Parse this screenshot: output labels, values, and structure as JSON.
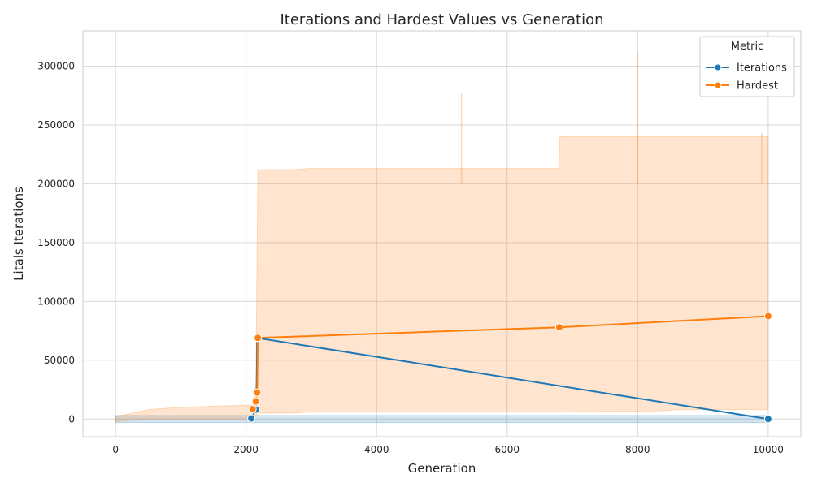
{
  "chart_data": {
    "type": "line",
    "title": "Iterations and Hardest Values vs Generation",
    "xlabel": "Generation",
    "ylabel": "Litals Iterations",
    "xlim": [
      -500,
      10500
    ],
    "ylim": [
      -15000,
      330000
    ],
    "xticks": [
      0,
      2000,
      4000,
      6000,
      8000,
      10000
    ],
    "yticks": [
      0,
      50000,
      100000,
      150000,
      200000,
      250000,
      300000
    ],
    "grid": true,
    "legend": {
      "title": "Metric",
      "placement": "top-right"
    },
    "series": [
      {
        "name": "Iterations",
        "color": "#1f77b4",
        "points": [
          {
            "x": 2080,
            "y": 500
          },
          {
            "x": 2150,
            "y": 8000
          },
          {
            "x": 2160,
            "y": 15000
          },
          {
            "x": 2170,
            "y": 69000
          },
          {
            "x": 10000,
            "y": 0
          }
        ],
        "band": [
          {
            "x": 0,
            "lo": -3000,
            "hi": 3000
          },
          {
            "x": 2080,
            "lo": -3000,
            "hi": 3000
          },
          {
            "x": 10000,
            "lo": -3000,
            "hi": 3000
          }
        ]
      },
      {
        "name": "Hardest",
        "color": "#ff7f0e",
        "points": [
          {
            "x": 2100,
            "y": 8500
          },
          {
            "x": 2150,
            "y": 15000
          },
          {
            "x": 2170,
            "y": 22500
          },
          {
            "x": 2180,
            "y": 69000
          },
          {
            "x": 6800,
            "y": 78000
          },
          {
            "x": 10000,
            "y": 87500
          }
        ],
        "band": [
          {
            "x": 0,
            "lo": -2000,
            "hi": 2000
          },
          {
            "x": 500,
            "lo": 0,
            "hi": 8000
          },
          {
            "x": 1000,
            "lo": 0,
            "hi": 10000
          },
          {
            "x": 2100,
            "lo": 0,
            "hi": 12000
          },
          {
            "x": 2150,
            "lo": 3000,
            "hi": 30000
          },
          {
            "x": 2180,
            "lo": 5000,
            "hi": 212000
          },
          {
            "x": 2700,
            "lo": 5000,
            "hi": 212000
          },
          {
            "x": 3000,
            "lo": 6000,
            "hi": 213000
          },
          {
            "x": 6790,
            "lo": 6000,
            "hi": 213000
          },
          {
            "x": 6810,
            "lo": 6000,
            "hi": 240000
          },
          {
            "x": 8400,
            "lo": 7000,
            "hi": 240000
          },
          {
            "x": 8600,
            "lo": 8000,
            "hi": 240000
          },
          {
            "x": 10000,
            "lo": 8000,
            "hi": 240000
          }
        ],
        "spikes": [
          {
            "x": 5300,
            "y": 277000
          },
          {
            "x": 8000,
            "y": 312000
          },
          {
            "x": 9900,
            "y": 243000
          }
        ]
      }
    ]
  }
}
